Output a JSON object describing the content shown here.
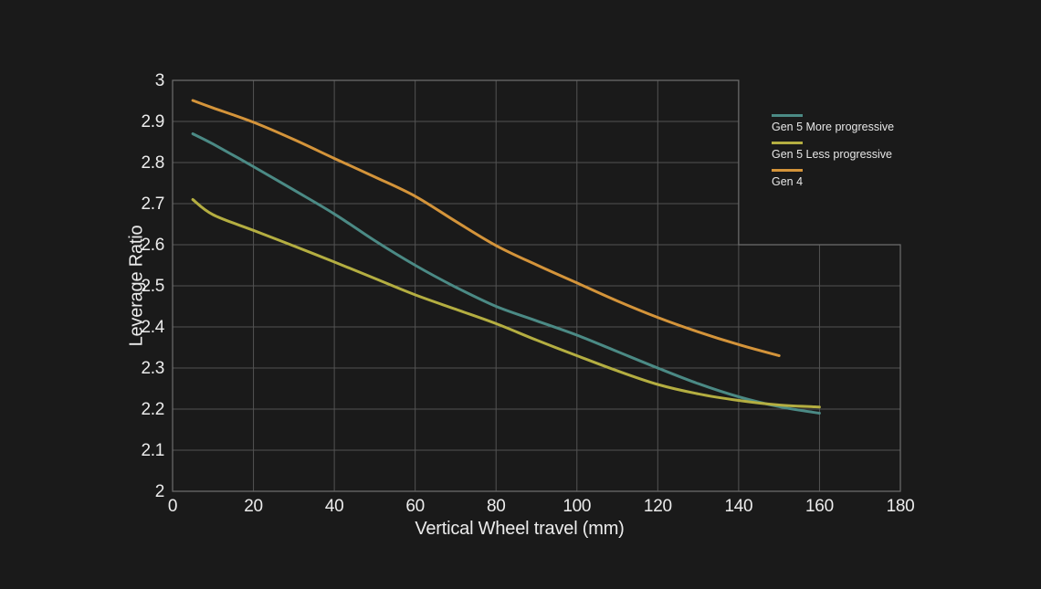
{
  "colors": {
    "background": "#1a1a1a",
    "grid": "#535353",
    "border": "#6d6d6d",
    "text": "#ececec",
    "legend_text": "#e6e6e6"
  },
  "chart_data": {
    "type": "line",
    "title": "",
    "xlabel": "Vertical Wheel travel (mm)",
    "ylabel": "Leverage Ratio",
    "xlim": [
      0,
      180
    ],
    "ylim": [
      2,
      3
    ],
    "x_ticks": [
      0,
      20,
      40,
      60,
      80,
      100,
      120,
      140,
      160,
      180
    ],
    "y_ticks": [
      2,
      2.1,
      2.2,
      2.3,
      2.4,
      2.5,
      2.6,
      2.7,
      2.8,
      2.9,
      3
    ],
    "grid": {
      "on": true,
      "x_step": 20,
      "y_step": 0.1,
      "cutout": {
        "x_from": 140,
        "y_above": 2.6
      }
    },
    "legend": {
      "position": "top-right",
      "entries": [
        "Gen 5 More progressive",
        "Gen 5 Less progressive",
        "Gen 4"
      ]
    },
    "series": [
      {
        "name": "Gen 5 More progressive",
        "color": "#4b8a85",
        "points": [
          [
            5,
            2.87
          ],
          [
            10,
            2.845
          ],
          [
            20,
            2.79
          ],
          [
            30,
            2.733
          ],
          [
            40,
            2.675
          ],
          [
            50,
            2.61
          ],
          [
            60,
            2.55
          ],
          [
            70,
            2.497
          ],
          [
            80,
            2.45
          ],
          [
            90,
            2.415
          ],
          [
            100,
            2.38
          ],
          [
            110,
            2.34
          ],
          [
            120,
            2.3
          ],
          [
            130,
            2.262
          ],
          [
            140,
            2.23
          ],
          [
            150,
            2.206
          ],
          [
            160,
            2.19
          ]
        ]
      },
      {
        "name": "Gen 5 Less progressive",
        "color": "#b4ae41",
        "points": [
          [
            5,
            2.71
          ],
          [
            10,
            2.673
          ],
          [
            20,
            2.635
          ],
          [
            30,
            2.597
          ],
          [
            40,
            2.558
          ],
          [
            50,
            2.518
          ],
          [
            60,
            2.478
          ],
          [
            70,
            2.443
          ],
          [
            80,
            2.408
          ],
          [
            90,
            2.368
          ],
          [
            100,
            2.33
          ],
          [
            110,
            2.293
          ],
          [
            120,
            2.26
          ],
          [
            130,
            2.237
          ],
          [
            140,
            2.221
          ],
          [
            150,
            2.21
          ],
          [
            160,
            2.205
          ]
        ]
      },
      {
        "name": "Gen 4",
        "color": "#d4943a",
        "points": [
          [
            5,
            2.951
          ],
          [
            10,
            2.933
          ],
          [
            20,
            2.898
          ],
          [
            30,
            2.856
          ],
          [
            40,
            2.81
          ],
          [
            50,
            2.765
          ],
          [
            60,
            2.718
          ],
          [
            70,
            2.657
          ],
          [
            80,
            2.598
          ],
          [
            90,
            2.551
          ],
          [
            100,
            2.507
          ],
          [
            110,
            2.463
          ],
          [
            120,
            2.423
          ],
          [
            130,
            2.388
          ],
          [
            140,
            2.357
          ],
          [
            150,
            2.33
          ]
        ]
      }
    ]
  }
}
